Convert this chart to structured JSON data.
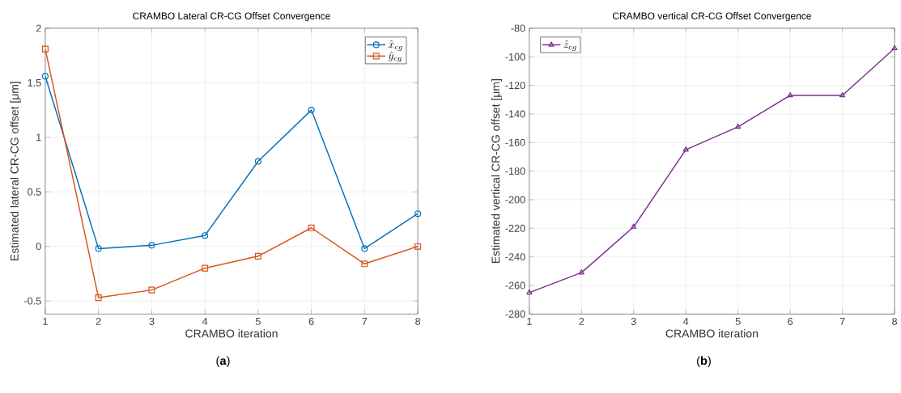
{
  "chart_data": [
    {
      "type": "line",
      "title": "CRAMBO Lateral CR-CG Offset Convergence",
      "xlabel": "CRAMBO iteration",
      "ylabel": "Estimated lateral CR-CG offset [μm]",
      "x": [
        1,
        2,
        3,
        4,
        5,
        6,
        7,
        8
      ],
      "series": [
        {
          "name": "\\hat{x}_{cg}",
          "color": "#0072bd",
          "marker": "circle",
          "values": [
            1.56,
            -0.02,
            0.01,
            0.1,
            0.78,
            1.25,
            -0.02,
            0.3
          ]
        },
        {
          "name": "\\hat{y}_{cg}",
          "color": "#d95319",
          "marker": "square",
          "values": [
            1.81,
            -0.47,
            -0.4,
            -0.2,
            -0.09,
            0.17,
            -0.16,
            0.0
          ]
        }
      ],
      "xlim": [
        1,
        8
      ],
      "xticks": [
        1,
        2,
        3,
        4,
        5,
        6,
        7,
        8
      ],
      "ylim": [
        -0.62,
        2
      ],
      "yticks": [
        -0.5,
        0,
        0.5,
        1,
        1.5,
        2
      ],
      "grid": true,
      "legend": "top right",
      "annotations": [
        "(**a**)"
      ]
    },
    {
      "type": "line",
      "title": "CRAMBO vertical CR-CG Offset Convergence",
      "xlabel": "CRAMBO iteration",
      "ylabel": "Estimated vertical CR-CG offset [μm]",
      "x": [
        1,
        2,
        3,
        4,
        5,
        6,
        7,
        8
      ],
      "series": [
        {
          "name": "\\hat{z}_{cg}",
          "color": "#7e2f8e",
          "marker": "triangle",
          "values": [
            -265,
            -251,
            -219,
            -165,
            -149,
            -127,
            -127,
            -94
          ]
        }
      ],
      "xlim": [
        1,
        8
      ],
      "xticks": [
        1,
        2,
        3,
        4,
        5,
        6,
        7,
        8
      ],
      "ylim": [
        -280,
        -80
      ],
      "yticks": [
        -280,
        -260,
        -240,
        -220,
        -200,
        -180,
        -160,
        -140,
        -120,
        -100,
        -80
      ],
      "grid": true,
      "legend": "top left",
      "annotations": [
        "(**b**)"
      ]
    }
  ]
}
